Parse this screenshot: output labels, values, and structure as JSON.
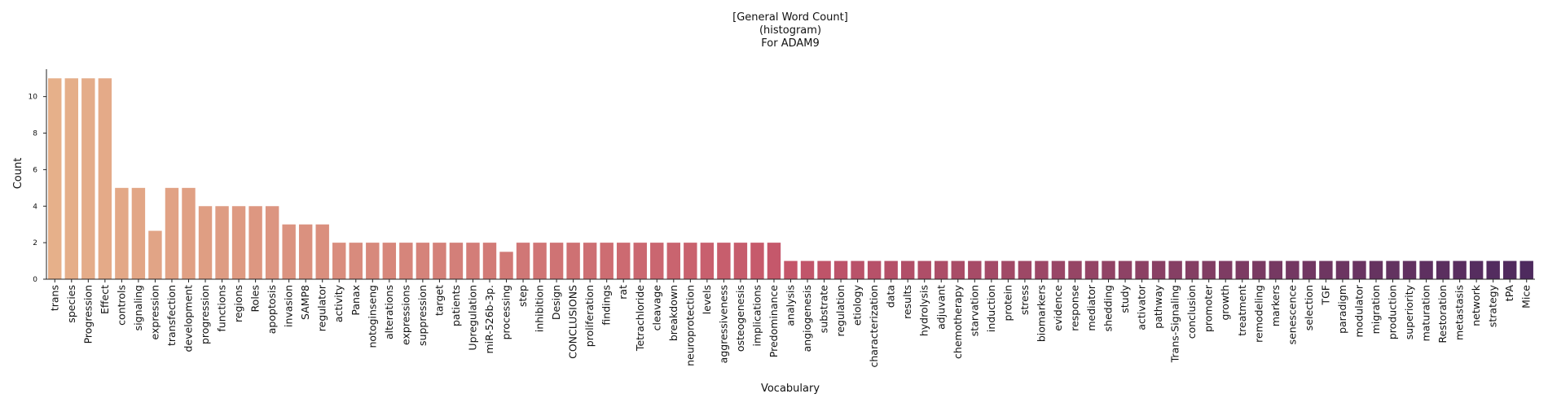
{
  "chart_data": {
    "type": "bar",
    "title": [
      "[General Word Count]",
      "(histogram)",
      "For ADAM9"
    ],
    "xlabel": "Vocabulary",
    "ylabel": "Count",
    "ylim": [
      0,
      11.5
    ],
    "yticks": [
      0,
      2,
      4,
      6,
      8,
      10
    ],
    "grid": false,
    "legend": "none",
    "palette": {
      "start": "#e6b08a",
      "mid": "#c4566a",
      "end": "#4e2a5e"
    },
    "categories": [
      "trans",
      "species",
      "Progression",
      "Effect",
      "controls",
      "signaling",
      "expression",
      "transfection",
      "development",
      "progression",
      "functions",
      "regions",
      "Roles",
      "apoptosis",
      "invasion",
      "SAMP8",
      "regulator",
      "activity",
      "Panax",
      "notoginseng",
      "alterations",
      "expressions",
      "suppression",
      "target",
      "patients",
      "Upregulation",
      "miR-526b-3p.",
      "processing",
      "step",
      "inhibition",
      "Design",
      "CONCLUSIONS",
      "proliferation",
      "findings",
      "rat",
      "Tetrachloride",
      "cleavage",
      "breakdown",
      "neuroprotection",
      "levels",
      "aggressiveness",
      "osteogenesis",
      "implications",
      "Predominance",
      "analysis",
      "angiogenesis",
      "substrate",
      "regulation",
      "etiology",
      "characterization",
      "data",
      "results",
      "hydrolysis",
      "adjuvant",
      "chemotherapy",
      "starvation",
      "induction",
      "protein",
      "stress",
      "biomarkers",
      "evidence",
      "response",
      "mediator",
      "shedding",
      "study",
      "activator",
      "pathway",
      "Trans-Signaling",
      "conclusion",
      "promoter",
      "growth",
      "treatment",
      "remodeling",
      "markers",
      "senescence",
      "selection",
      "TGF",
      "paradigm",
      "modulator",
      "migration",
      "production",
      "superiority",
      "maturation",
      "Restoration",
      "metastasis",
      "network",
      "strategy",
      "tPA",
      "Mice"
    ],
    "values": [
      11,
      11,
      11,
      11,
      5,
      5,
      2.65,
      5,
      5,
      4,
      4,
      4,
      4,
      4,
      3,
      3,
      3,
      2,
      2,
      2,
      2,
      2,
      2,
      2,
      2,
      2,
      2,
      1.5,
      2,
      2,
      2,
      2,
      2,
      2,
      2,
      2,
      2,
      2,
      2,
      2,
      2,
      2,
      2,
      2,
      1,
      1,
      1,
      1,
      1,
      1,
      1,
      1,
      1,
      1,
      1,
      1,
      1,
      1,
      1,
      1,
      1,
      1,
      1,
      1,
      1,
      1,
      1,
      1,
      1,
      1,
      1,
      1,
      1,
      1,
      1,
      1,
      1,
      1,
      1,
      1,
      1,
      1,
      1,
      1,
      1,
      1,
      1,
      1,
      1
    ]
  }
}
